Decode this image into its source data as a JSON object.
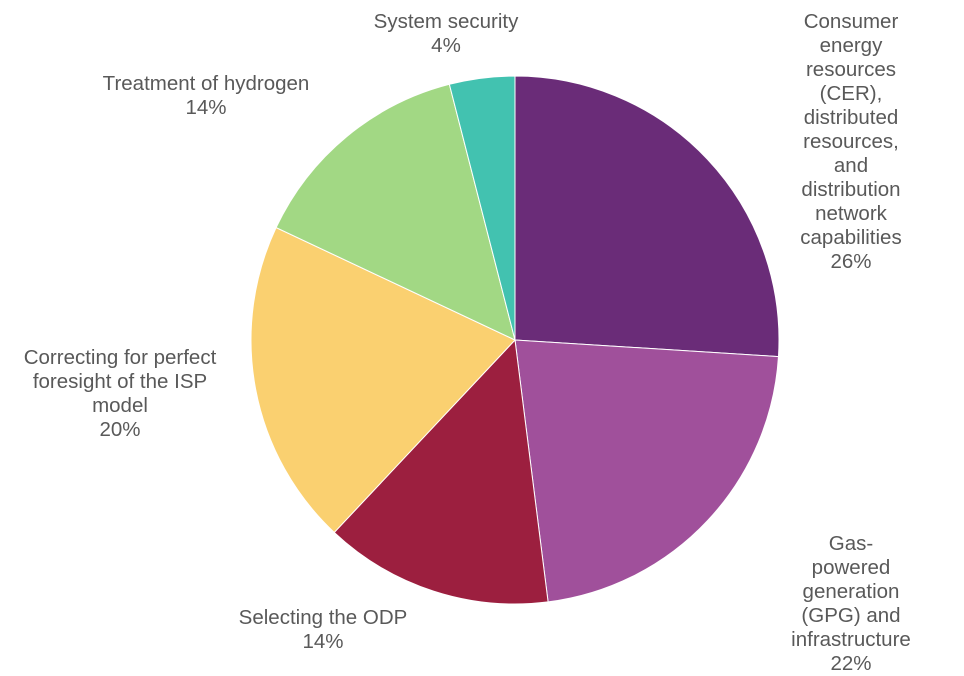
{
  "chart_data": {
    "type": "pie",
    "start_angle_deg": 0,
    "direction": "clockwise",
    "slices": [
      {
        "label": "Consumer energy\nresources (CER),\ndistributed resources,\nand distribution\nnetwork capabilities",
        "value": 26,
        "value_label": "26%",
        "color": "#6A2C78"
      },
      {
        "label": "Gas-powered\ngeneration (GPG) and\ninfrastructure",
        "value": 22,
        "value_label": "22%",
        "color": "#A0509B"
      },
      {
        "label": "Selecting the ODP",
        "value": 14,
        "value_label": "14%",
        "color": "#9C1F3F"
      },
      {
        "label": "Correcting for perfect\nforesight of the ISP\nmodel",
        "value": 20,
        "value_label": "20%",
        "color": "#FAD070"
      },
      {
        "label": "Treatment of hydrogen",
        "value": 14,
        "value_label": "14%",
        "color": "#A2D884"
      },
      {
        "label": "System security",
        "value": 4,
        "value_label": "4%",
        "color": "#42C2B0"
      }
    ]
  }
}
